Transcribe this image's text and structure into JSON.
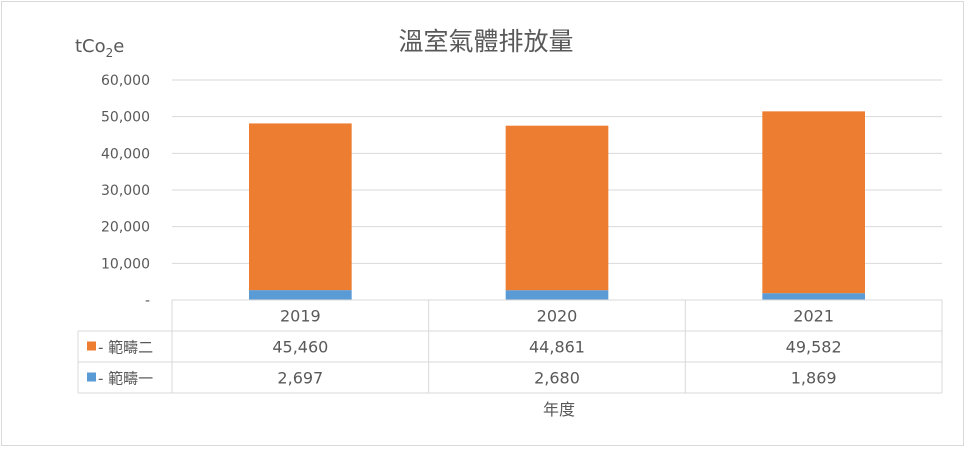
{
  "chart_data": {
    "type": "bar",
    "stacked": true,
    "title": "溫室氣體排放量",
    "ylabel": {
      "base": "tCo",
      "sub": "2",
      "tail": "e"
    },
    "xlabel": "年度",
    "categories": [
      "2019",
      "2020",
      "2021"
    ],
    "ylim": [
      0,
      60000
    ],
    "yticks": [
      {
        "value": 0,
        "label": "-"
      },
      {
        "value": 10000,
        "label": "10,000"
      },
      {
        "value": 20000,
        "label": "20,000"
      },
      {
        "value": 30000,
        "label": "30,000"
      },
      {
        "value": 40000,
        "label": "40,000"
      },
      {
        "value": 50000,
        "label": "50,000"
      },
      {
        "value": 60000,
        "label": "60,000"
      }
    ],
    "grid": true,
    "legend": "data-table",
    "series": [
      {
        "name": "範疇一",
        "legend_label": "- 範疇一",
        "color": "#5b9bd5",
        "values": [
          2697,
          2680,
          1869
        ],
        "value_labels": [
          "2,697",
          "2,680",
          "1,869"
        ]
      },
      {
        "name": "範疇二",
        "legend_label": "- 範疇二",
        "color": "#ed7d31",
        "values": [
          45460,
          44861,
          49582
        ],
        "value_labels": [
          "45,460",
          "44,861",
          "49,582"
        ]
      }
    ]
  }
}
